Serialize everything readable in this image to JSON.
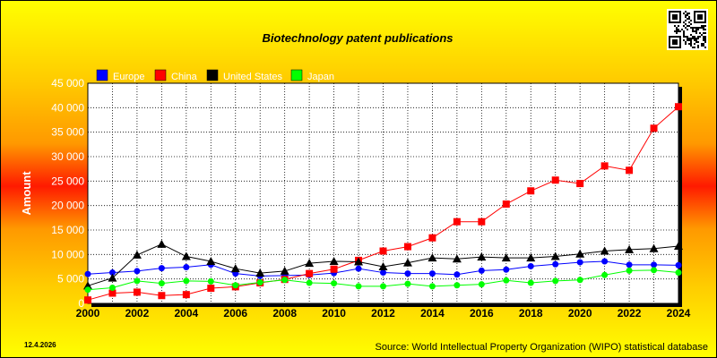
{
  "chart_data": {
    "type": "line",
    "title": "Biotechnology patent publications",
    "xlabel": "",
    "ylabel": "Amount",
    "x": [
      2000,
      2001,
      2002,
      2003,
      2004,
      2005,
      2006,
      2007,
      2008,
      2009,
      2010,
      2011,
      2012,
      2013,
      2014,
      2015,
      2016,
      2017,
      2018,
      2019,
      2020,
      2021,
      2022,
      2023,
      2024
    ],
    "xticks": [
      "2000",
      "2002",
      "2004",
      "2006",
      "2008",
      "2010",
      "2012",
      "2014",
      "2016",
      "2018",
      "2020",
      "2022",
      "2024"
    ],
    "yticks": [
      "0",
      "5 000",
      "10 000",
      "15 000",
      "20 000",
      "25 000",
      "30 000",
      "35 000",
      "40 000",
      "45 000"
    ],
    "ylim": [
      0,
      45000
    ],
    "grid": true,
    "legend_position": "top-left",
    "series": [
      {
        "name": "Europe",
        "color": "#0000ff",
        "marker": "circle",
        "values": [
          6000,
          6300,
          6600,
          7200,
          7400,
          7900,
          6100,
          5600,
          5700,
          5800,
          6200,
          7100,
          6300,
          6100,
          6100,
          5900,
          6700,
          6900,
          7600,
          8000,
          8400,
          8600,
          7900,
          7900,
          7800
        ]
      },
      {
        "name": "China",
        "color": "#ff0000",
        "marker": "square",
        "values": [
          700,
          2100,
          2300,
          1600,
          1800,
          3100,
          3400,
          4200,
          4900,
          6100,
          7000,
          8800,
          10700,
          11600,
          13400,
          16700,
          16700,
          20300,
          23000,
          25200,
          24500,
          28100,
          27200,
          35800,
          40200
        ]
      },
      {
        "name": "United States",
        "color": "#000000",
        "marker": "triangle",
        "values": [
          3600,
          5200,
          9900,
          12100,
          9600,
          8600,
          7100,
          6200,
          6600,
          8200,
          8600,
          8500,
          7500,
          8300,
          9300,
          9100,
          9500,
          9300,
          9300,
          9600,
          10100,
          10700,
          11000,
          11200,
          11700
        ]
      },
      {
        "name": "Japan",
        "color": "#00ff00",
        "marker": "circle",
        "values": [
          2800,
          3200,
          4600,
          4100,
          4600,
          4500,
          3700,
          4300,
          4800,
          4200,
          4100,
          3500,
          3500,
          4000,
          3500,
          3700,
          3900,
          4700,
          4200,
          4600,
          4800,
          5800,
          6700,
          6800,
          6300
        ]
      }
    ]
  },
  "footer": {
    "date": "12.4.2026",
    "source": "Source: World Intellectual Property Organization (WIPO) statistical database"
  },
  "qr_code": {
    "icon": "qr-code-icon"
  }
}
